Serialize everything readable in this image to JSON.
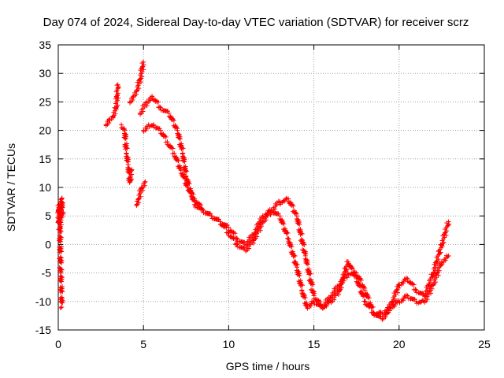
{
  "chart_data": {
    "type": "scatter",
    "title": "Day 074 of 2024, Sidereal Day-to-day VTEC variation (SDTVAR) for receiver scrz",
    "xlabel": "GPS time / hours",
    "ylabel": "SDTVAR / TECUs",
    "xlim": [
      0,
      25
    ],
    "ylim": [
      -15,
      35
    ],
    "xticks": [
      0,
      5,
      10,
      15,
      20,
      25
    ],
    "yticks": [
      -15,
      -10,
      -5,
      0,
      5,
      10,
      15,
      20,
      25,
      30,
      35
    ],
    "grid": true,
    "marker": "+",
    "series": [
      {
        "name": "SDTVAR",
        "color": "#ff0000",
        "segments": [
          {
            "x": [
              0.0,
              0.05,
              0.1,
              0.15,
              0.2
            ],
            "y": [
              4,
              7,
              2,
              -5,
              -11
            ]
          },
          {
            "x": [
              0.1,
              0.15,
              0.2,
              0.25
            ],
            "y": [
              3,
              6,
              8,
              5
            ]
          },
          {
            "x": [
              2.8,
              3.0,
              3.2,
              3.4,
              3.5
            ],
            "y": [
              21,
              22,
              22.5,
              24,
              28
            ]
          },
          {
            "x": [
              3.7,
              3.9,
              4.0,
              4.1,
              4.2,
              4.3
            ],
            "y": [
              21,
              20,
              16,
              14,
              11,
              13
            ]
          },
          {
            "x": [
              4.2,
              4.4,
              4.6,
              4.8,
              5.0
            ],
            "y": [
              25,
              26,
              27,
              29,
              32
            ]
          },
          {
            "x": [
              4.6,
              4.7,
              4.9,
              5.1
            ],
            "y": [
              7,
              8,
              10,
              11
            ]
          },
          {
            "x": [
              4.8,
              5.2,
              5.5,
              6.0,
              6.5,
              7.0,
              7.3,
              7.5,
              7.8,
              8.0,
              8.5,
              9.0,
              9.5,
              10.0,
              10.5,
              11.0,
              11.5,
              12.0,
              12.5,
              13.0,
              13.5,
              14.0,
              14.5,
              15.0,
              15.5,
              16.0,
              16.5,
              17.0,
              17.5,
              18.0,
              18.5,
              19.0,
              19.3,
              19.6,
              20.0,
              20.5,
              21.0,
              21.5,
              22.0,
              22.5,
              22.9
            ],
            "y": [
              23,
              25,
              26,
              24,
              23,
              20,
              16,
              12,
              9,
              7,
              6,
              5,
              4,
              2,
              0,
              -1,
              1,
              4,
              6,
              7.5,
              8,
              5,
              -2,
              -9,
              -11,
              -9,
              -7,
              -5,
              -5,
              -8,
              -12,
              -13,
              -12,
              -10,
              -7,
              -6,
              -8,
              -9,
              -5,
              0,
              4
            ]
          },
          {
            "x": [
              5.0,
              5.3,
              5.6,
              6.0,
              6.4,
              6.8,
              7.2,
              7.6,
              8.0,
              8.5,
              9.0,
              9.5,
              10.0,
              10.5,
              11.0,
              11.5,
              12.0,
              12.5,
              13.0,
              13.5,
              14.0,
              14.3,
              14.6,
              15.0,
              15.5,
              16.0,
              16.5,
              17.0,
              17.5,
              18.0,
              18.5,
              19.0,
              19.5,
              20.0,
              20.5,
              21.0,
              21.5,
              22.0,
              22.5,
              22.9
            ],
            "y": [
              20,
              21,
              21,
              20,
              18,
              16,
              13,
              10,
              8,
              6,
              5,
              4,
              3,
              1,
              0,
              2,
              5,
              6,
              5,
              1,
              -4,
              -8,
              -11,
              -10,
              -11,
              -10,
              -8,
              -3,
              -6,
              -10,
              -12,
              -12,
              -11,
              -10,
              -9,
              -10,
              -10,
              -7,
              -3,
              -2
            ]
          }
        ]
      }
    ]
  }
}
